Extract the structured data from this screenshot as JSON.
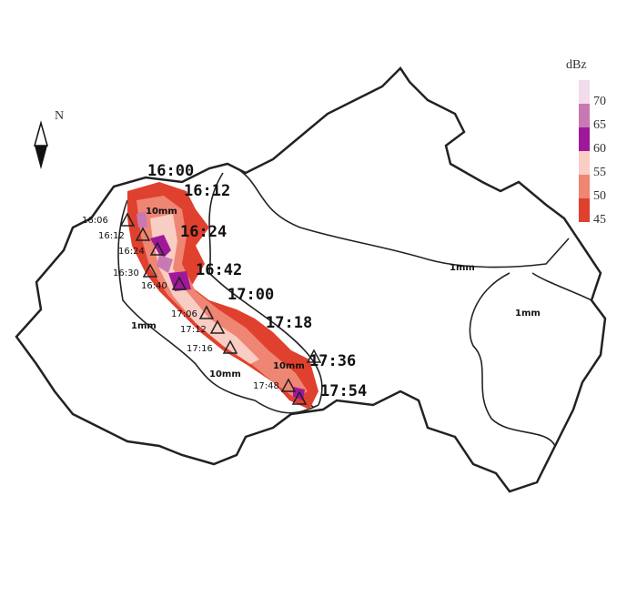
{
  "legend": {
    "title": "dBz",
    "entries": [
      {
        "value": 70,
        "color": "#f2dcea"
      },
      {
        "value": 65,
        "color": "#c879b4"
      },
      {
        "value": 60,
        "color": "#a0189a"
      },
      {
        "value": 55,
        "color": "#f8cdc4"
      },
      {
        "value": 50,
        "color": "#ef8573"
      },
      {
        "value": 45,
        "color": "#e0402e"
      }
    ]
  },
  "compass": "N",
  "time_labels": {
    "large": [
      "16:00",
      "16:12",
      "16:24",
      "16:42",
      "17:00",
      "17:18",
      "17:36",
      "17:54"
    ],
    "small": [
      "16:06",
      "16:12",
      "16:24",
      "16:30",
      "16:40",
      "17:06",
      "17:12",
      "17:16",
      "17:48"
    ]
  },
  "contour_labels": {
    "ten_mm": [
      "10mm",
      "10mm",
      "10mm"
    ],
    "one_mm": [
      "1mm",
      "1mm",
      "1mm"
    ]
  }
}
